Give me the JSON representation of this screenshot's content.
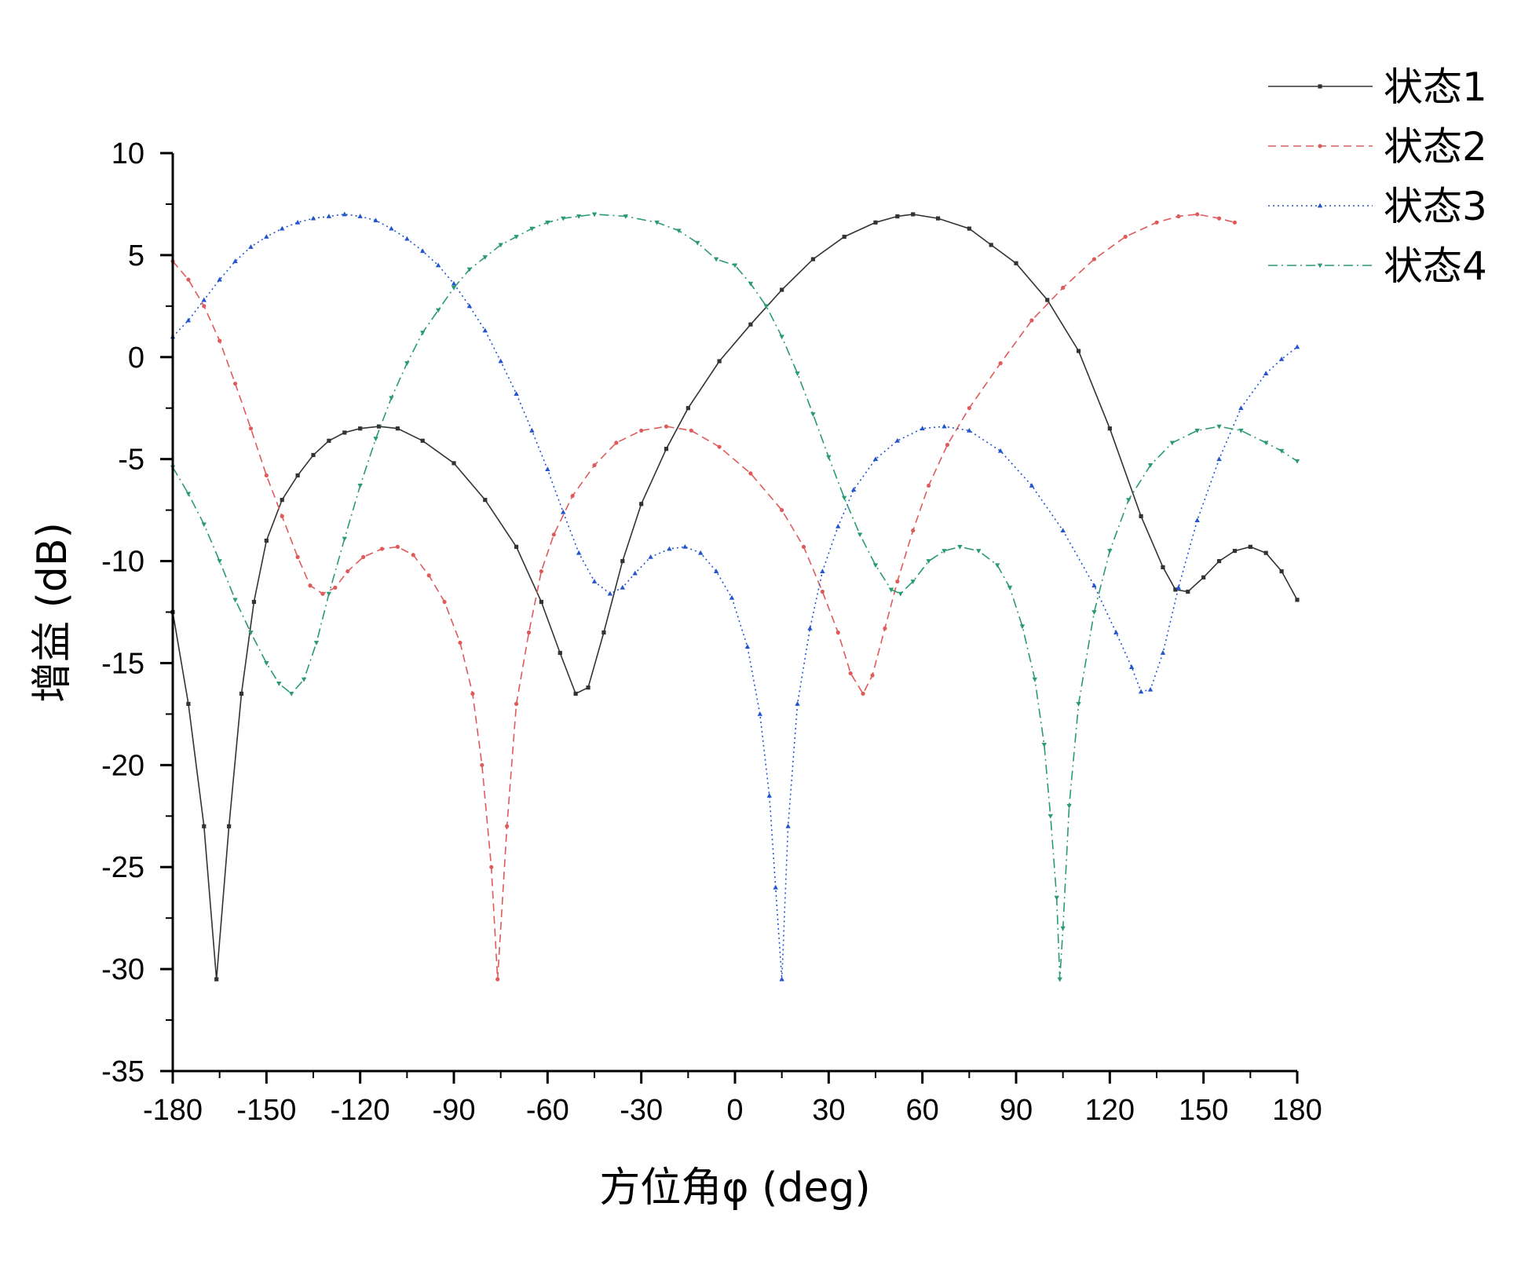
{
  "chart_data": {
    "type": "line",
    "title": "",
    "xlabel": "方位角φ (deg)",
    "ylabel": "增益 (dB)",
    "xlim": [
      -180,
      180
    ],
    "ylim": [
      -35,
      10
    ],
    "xticks": [
      -180,
      -150,
      -120,
      -90,
      -60,
      -30,
      0,
      30,
      60,
      90,
      120,
      150,
      180
    ],
    "yticks": [
      10,
      5,
      0,
      -5,
      -10,
      -15,
      -20,
      -25,
      -30,
      -35
    ],
    "grid": false,
    "legend_position": "top-right",
    "series": [
      {
        "name": "状态1",
        "color": "#333333",
        "dash": "solid",
        "marker": "square",
        "points": [
          [
            -180,
            -12.5
          ],
          [
            -175,
            -17
          ],
          [
            -170,
            -23
          ],
          [
            -166,
            -30.5
          ],
          [
            -162,
            -23
          ],
          [
            -158,
            -16.5
          ],
          [
            -154,
            -12
          ],
          [
            -150,
            -9
          ],
          [
            -145,
            -7
          ],
          [
            -140,
            -5.8
          ],
          [
            -135,
            -4.8
          ],
          [
            -130,
            -4.1
          ],
          [
            -125,
            -3.7
          ],
          [
            -120,
            -3.5
          ],
          [
            -114,
            -3.4
          ],
          [
            -108,
            -3.5
          ],
          [
            -100,
            -4.1
          ],
          [
            -90,
            -5.2
          ],
          [
            -80,
            -7
          ],
          [
            -70,
            -9.3
          ],
          [
            -62,
            -12
          ],
          [
            -56,
            -14.5
          ],
          [
            -51,
            -16.5
          ],
          [
            -47,
            -16.2
          ],
          [
            -42,
            -13.5
          ],
          [
            -36,
            -10
          ],
          [
            -30,
            -7.2
          ],
          [
            -22,
            -4.5
          ],
          [
            -15,
            -2.5
          ],
          [
            -5,
            -0.2
          ],
          [
            5,
            1.6
          ],
          [
            15,
            3.3
          ],
          [
            25,
            4.8
          ],
          [
            35,
            5.9
          ],
          [
            45,
            6.6
          ],
          [
            52,
            6.9
          ],
          [
            57,
            7.0
          ],
          [
            65,
            6.8
          ],
          [
            75,
            6.3
          ],
          [
            82,
            5.5
          ],
          [
            90,
            4.6
          ],
          [
            100,
            2.8
          ],
          [
            110,
            0.3
          ],
          [
            120,
            -3.5
          ],
          [
            130,
            -7.8
          ],
          [
            137,
            -10.3
          ],
          [
            141,
            -11.4
          ],
          [
            145,
            -11.5
          ],
          [
            150,
            -10.8
          ],
          [
            155,
            -10
          ],
          [
            160,
            -9.5
          ],
          [
            165,
            -9.3
          ],
          [
            170,
            -9.6
          ],
          [
            175,
            -10.5
          ],
          [
            180,
            -11.9
          ]
        ]
      },
      {
        "name": "状态2",
        "color": "#e05a5a",
        "dash": "dashed",
        "marker": "circle",
        "points": [
          [
            -180,
            4.7
          ],
          [
            -175,
            3.8
          ],
          [
            -170,
            2.5
          ],
          [
            -165,
            0.8
          ],
          [
            -160,
            -1.3
          ],
          [
            -155,
            -3.5
          ],
          [
            -150,
            -5.8
          ],
          [
            -145,
            -7.8
          ],
          [
            -140,
            -9.8
          ],
          [
            -136,
            -11.2
          ],
          [
            -132,
            -11.6
          ],
          [
            -128,
            -11.3
          ],
          [
            -124,
            -10.5
          ],
          [
            -119,
            -9.8
          ],
          [
            -113,
            -9.4
          ],
          [
            -108,
            -9.3
          ],
          [
            -103,
            -9.7
          ],
          [
            -98,
            -10.7
          ],
          [
            -93,
            -12
          ],
          [
            -88,
            -14
          ],
          [
            -84,
            -16.5
          ],
          [
            -81,
            -20
          ],
          [
            -78,
            -25
          ],
          [
            -76,
            -30.5
          ],
          [
            -73,
            -23
          ],
          [
            -70,
            -17
          ],
          [
            -66,
            -13.5
          ],
          [
            -62,
            -10.5
          ],
          [
            -58,
            -8.7
          ],
          [
            -52,
            -6.8
          ],
          [
            -45,
            -5.3
          ],
          [
            -38,
            -4.2
          ],
          [
            -30,
            -3.6
          ],
          [
            -22,
            -3.4
          ],
          [
            -14,
            -3.6
          ],
          [
            -5,
            -4.4
          ],
          [
            5,
            -5.7
          ],
          [
            15,
            -7.5
          ],
          [
            22,
            -9.3
          ],
          [
            28,
            -11.5
          ],
          [
            33,
            -13.5
          ],
          [
            37,
            -15.5
          ],
          [
            41,
            -16.5
          ],
          [
            44,
            -15.6
          ],
          [
            48,
            -13.3
          ],
          [
            52,
            -11
          ],
          [
            57,
            -8.5
          ],
          [
            62,
            -6.3
          ],
          [
            68,
            -4.3
          ],
          [
            75,
            -2.5
          ],
          [
            85,
            -0.3
          ],
          [
            95,
            1.8
          ],
          [
            105,
            3.4
          ],
          [
            115,
            4.8
          ],
          [
            125,
            5.9
          ],
          [
            135,
            6.6
          ],
          [
            142,
            6.9
          ],
          [
            148,
            7.0
          ],
          [
            155,
            6.8
          ],
          [
            160,
            6.6
          ]
        ]
      },
      {
        "name": "状态3",
        "color": "#2255cc",
        "dash": "dotted",
        "marker": "triangle",
        "points": [
          [
            -180,
            1.0
          ],
          [
            -175,
            1.8
          ],
          [
            -170,
            2.8
          ],
          [
            -165,
            3.8
          ],
          [
            -160,
            4.7
          ],
          [
            -155,
            5.4
          ],
          [
            -150,
            5.9
          ],
          [
            -145,
            6.3
          ],
          [
            -140,
            6.6
          ],
          [
            -135,
            6.8
          ],
          [
            -130,
            6.9
          ],
          [
            -125,
            7.0
          ],
          [
            -120,
            6.9
          ],
          [
            -115,
            6.7
          ],
          [
            -110,
            6.3
          ],
          [
            -105,
            5.8
          ],
          [
            -100,
            5.2
          ],
          [
            -95,
            4.5
          ],
          [
            -90,
            3.6
          ],
          [
            -85,
            2.5
          ],
          [
            -80,
            1.3
          ],
          [
            -75,
            -0.2
          ],
          [
            -70,
            -1.8
          ],
          [
            -65,
            -3.6
          ],
          [
            -60,
            -5.5
          ],
          [
            -55,
            -7.6
          ],
          [
            -50,
            -9.6
          ],
          [
            -45,
            -11
          ],
          [
            -40,
            -11.6
          ],
          [
            -36,
            -11.3
          ],
          [
            -32,
            -10.6
          ],
          [
            -27,
            -9.8
          ],
          [
            -21,
            -9.4
          ],
          [
            -16,
            -9.3
          ],
          [
            -11,
            -9.6
          ],
          [
            -6,
            -10.5
          ],
          [
            -1,
            -11.8
          ],
          [
            4,
            -14.2
          ],
          [
            8,
            -17.5
          ],
          [
            11,
            -21.5
          ],
          [
            13,
            -26
          ],
          [
            15,
            -30.5
          ],
          [
            17,
            -23
          ],
          [
            20,
            -17
          ],
          [
            24,
            -13.3
          ],
          [
            28,
            -10.5
          ],
          [
            33,
            -8.3
          ],
          [
            38,
            -6.5
          ],
          [
            45,
            -5
          ],
          [
            52,
            -4.1
          ],
          [
            60,
            -3.5
          ],
          [
            67,
            -3.4
          ],
          [
            75,
            -3.6
          ],
          [
            85,
            -4.6
          ],
          [
            95,
            -6.3
          ],
          [
            105,
            -8.5
          ],
          [
            115,
            -11.2
          ],
          [
            122,
            -13.5
          ],
          [
            127,
            -15.2
          ],
          [
            130,
            -16.4
          ],
          [
            133,
            -16.3
          ],
          [
            137,
            -14.5
          ],
          [
            142,
            -11.3
          ],
          [
            148,
            -8
          ],
          [
            155,
            -5
          ],
          [
            162,
            -2.5
          ],
          [
            170,
            -0.8
          ],
          [
            175,
            -0.1
          ],
          [
            180,
            0.5
          ]
        ]
      },
      {
        "name": "状态4",
        "color": "#2a9a72",
        "dash": "dash-dot",
        "marker": "triangle-down",
        "points": [
          [
            -180,
            -5.4
          ],
          [
            -175,
            -6.7
          ],
          [
            -170,
            -8.2
          ],
          [
            -165,
            -10
          ],
          [
            -160,
            -11.9
          ],
          [
            -155,
            -13.5
          ],
          [
            -150,
            -15
          ],
          [
            -146,
            -16
          ],
          [
            -142,
            -16.5
          ],
          [
            -138,
            -15.8
          ],
          [
            -134,
            -14
          ],
          [
            -130,
            -11.6
          ],
          [
            -125,
            -8.9
          ],
          [
            -120,
            -6.3
          ],
          [
            -115,
            -4
          ],
          [
            -110,
            -2
          ],
          [
            -105,
            -0.3
          ],
          [
            -100,
            1.2
          ],
          [
            -95,
            2.3
          ],
          [
            -90,
            3.4
          ],
          [
            -85,
            4.3
          ],
          [
            -80,
            4.9
          ],
          [
            -75,
            5.5
          ],
          [
            -70,
            5.9
          ],
          [
            -65,
            6.3
          ],
          [
            -60,
            6.6
          ],
          [
            -55,
            6.8
          ],
          [
            -50,
            6.9
          ],
          [
            -45,
            7.0
          ],
          [
            -35,
            6.9
          ],
          [
            -25,
            6.6
          ],
          [
            -18,
            6.2
          ],
          [
            -12,
            5.6
          ],
          [
            -6,
            4.8
          ],
          [
            0,
            4.5
          ],
          [
            5,
            3.6
          ],
          [
            10,
            2.5
          ],
          [
            15,
            1.0
          ],
          [
            20,
            -0.8
          ],
          [
            25,
            -2.8
          ],
          [
            30,
            -4.9
          ],
          [
            35,
            -6.9
          ],
          [
            40,
            -8.7
          ],
          [
            45,
            -10.2
          ],
          [
            50,
            -11.4
          ],
          [
            53,
            -11.6
          ],
          [
            57,
            -11
          ],
          [
            62,
            -10
          ],
          [
            67,
            -9.5
          ],
          [
            72,
            -9.3
          ],
          [
            78,
            -9.5
          ],
          [
            84,
            -10.2
          ],
          [
            88,
            -11.3
          ],
          [
            92,
            -13.2
          ],
          [
            96,
            -15.8
          ],
          [
            99,
            -19
          ],
          [
            101,
            -22.5
          ],
          [
            103,
            -26.5
          ],
          [
            104,
            -30.5
          ],
          [
            105,
            -28
          ],
          [
            107,
            -22
          ],
          [
            110,
            -17
          ],
          [
            115,
            -12.5
          ],
          [
            120,
            -9.5
          ],
          [
            126,
            -7
          ],
          [
            133,
            -5.3
          ],
          [
            140,
            -4.2
          ],
          [
            148,
            -3.6
          ],
          [
            155,
            -3.4
          ],
          [
            162,
            -3.6
          ],
          [
            170,
            -4.2
          ],
          [
            175,
            -4.6
          ],
          [
            180,
            -5.1
          ]
        ]
      }
    ]
  }
}
